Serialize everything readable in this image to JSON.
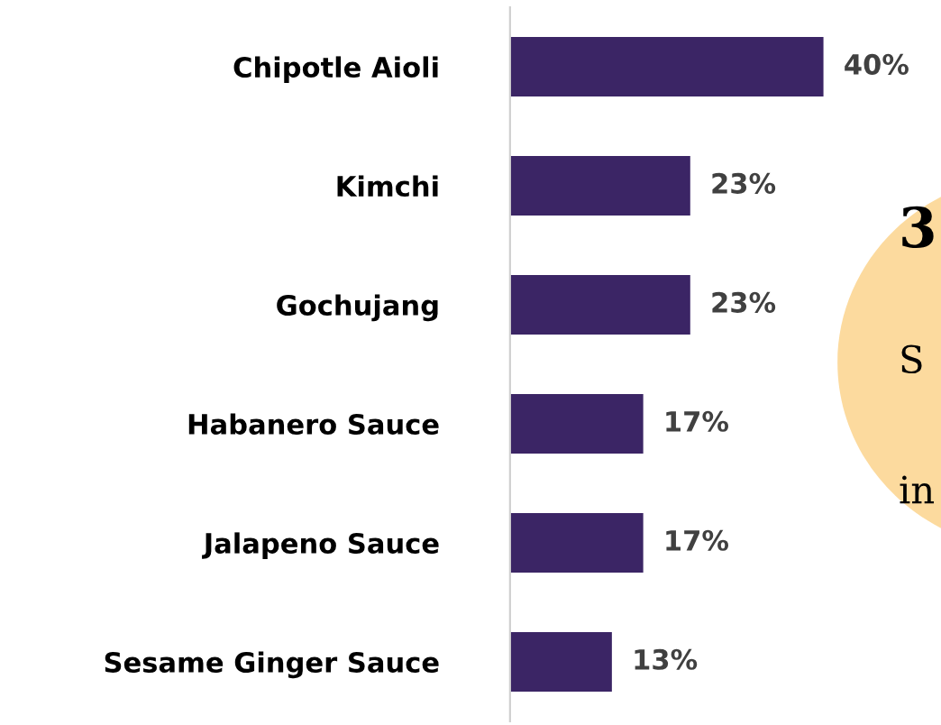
{
  "chart_data": {
    "type": "bar",
    "orientation": "horizontal",
    "categories": [
      "Chipotle Aioli",
      "Kimchi",
      "Gochujang",
      "Habanero Sauce",
      "Jalapeno Sauce",
      "Sesame Ginger Sauce"
    ],
    "values": [
      40,
      23,
      23,
      17,
      17,
      13
    ],
    "value_labels": [
      "40%",
      "23%",
      "23%",
      "17%",
      "17%",
      "13%"
    ],
    "color": "#3b2565",
    "grid": false,
    "legend": false,
    "annotations": [
      "3",
      "S",
      "in"
    ]
  }
}
